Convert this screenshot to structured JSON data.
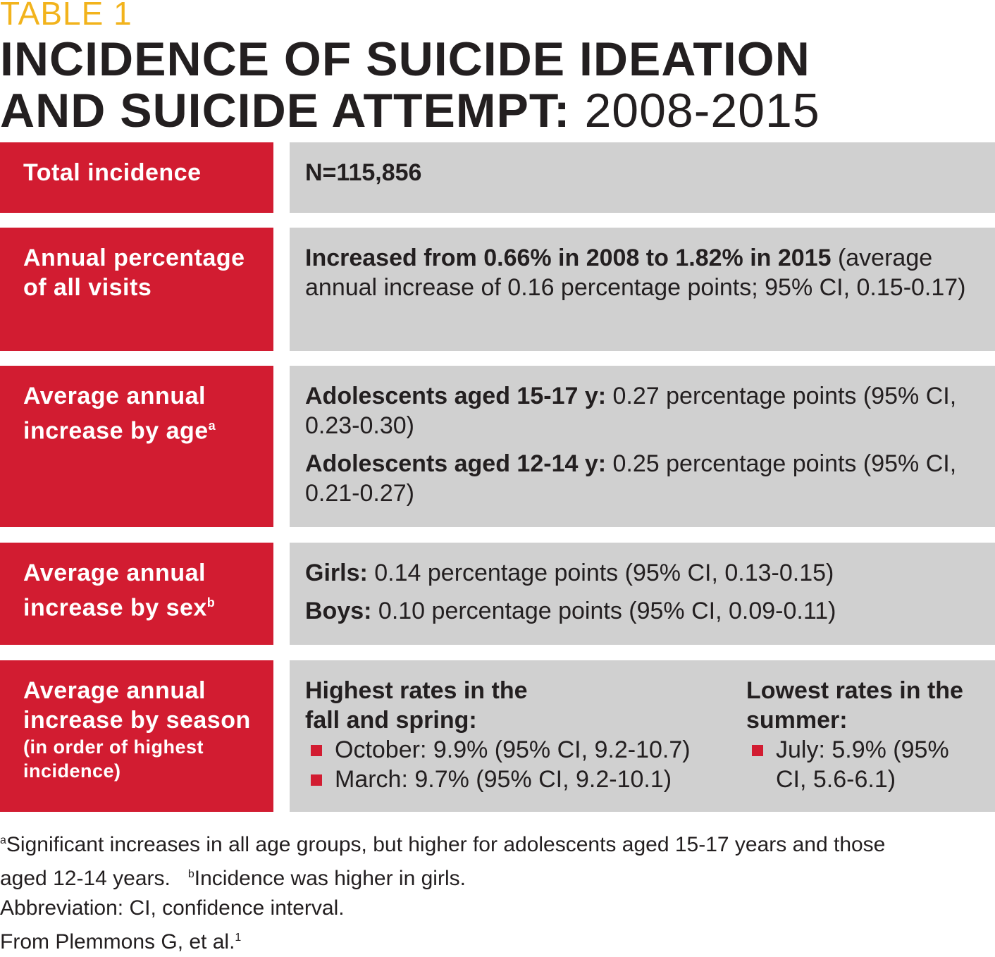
{
  "header": {
    "table_label": "TABLE 1",
    "title_line1": "INCIDENCE OF SUICIDE IDEATION",
    "title_line2_bold": "AND SUICIDE ATTEMPT:",
    "title_years": "2008-2015"
  },
  "rows": {
    "total": {
      "label": "Total incidence",
      "value": "N=115,856"
    },
    "annual": {
      "label": "Annual percentage of all visits",
      "value_bold": "Increased from 0.66% in 2008 to 1.82% in 2015",
      "value_rest": " (average annual increase of 0.16 percentage points; 95% CI, 0.15-0.17)"
    },
    "age": {
      "label": "Average annual increase by age",
      "label_sup": "a",
      "item1_bold": "Adolescents aged 15-17 y:",
      "item1_rest": " 0.27 percentage points (95% CI, 0.23-0.30)",
      "item2_bold": "Adolescents aged 12-14 y:",
      "item2_rest": " 0.25 percentage points (95% CI, 0.21-0.27)"
    },
    "sex": {
      "label": "Average annual increase by sex",
      "label_sup": "b",
      "item1_bold": "Girls:",
      "item1_rest": " 0.14 percentage points (95% CI, 0.13-0.15)",
      "item2_bold": "Boys:",
      "item2_rest": " 0.10 percentage points (95% CI, 0.09-0.11)"
    },
    "season": {
      "label": "Average annual increase by season",
      "label_sub": "(in order of highest incidence)",
      "highest_heading": "Highest rates in the fall and spring:",
      "highest_items": [
        "October: 9.9% (95% CI, 9.2-10.7)",
        "March: 9.7% (95% CI, 9.2-10.1)"
      ],
      "lowest_heading": "Lowest rates in the summer:",
      "lowest_items": [
        "July: 5.9% (95% CI, 5.6-6.1)"
      ]
    }
  },
  "footnotes": {
    "a_mark": "a",
    "a_text": "Significant increases in all age groups, but higher for adolescents aged 15-17 years and those aged 12-14 years.",
    "b_mark": "b",
    "b_text": "Incidence was higher in girls.",
    "abbreviation": "Abbreviation: CI, confidence interval.",
    "source": "From Plemmons G, et al.",
    "source_sup": "1"
  },
  "colors": {
    "label_bg": "#d21c31",
    "value_bg": "#d0d0d0",
    "table_label": "#f2b31c"
  }
}
